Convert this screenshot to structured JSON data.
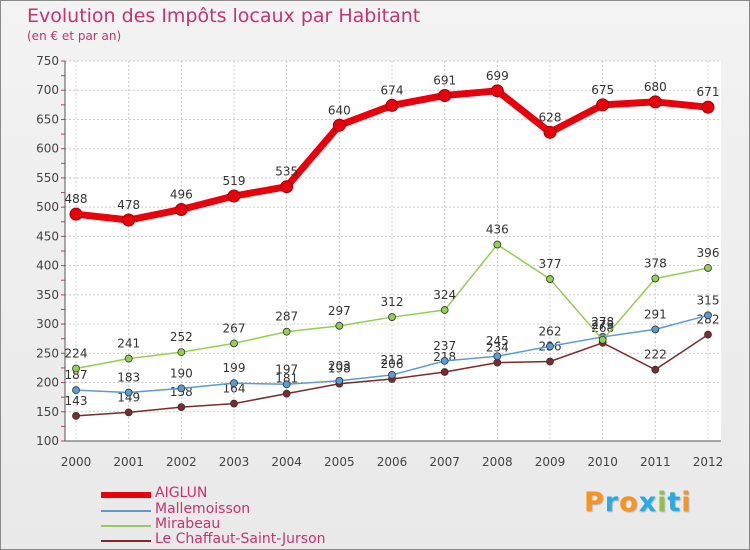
{
  "chart_data": {
    "type": "line",
    "title": "Evolution des Impôts locaux par Habitant",
    "subtitle": "(en € et par an)",
    "xlabel": "",
    "ylabel": "",
    "ylim": [
      100,
      750
    ],
    "yticks": [
      100,
      150,
      200,
      250,
      300,
      350,
      400,
      450,
      500,
      550,
      600,
      650,
      700,
      750
    ],
    "categories": [
      "2000",
      "2001",
      "2002",
      "2003",
      "2004",
      "2005",
      "2006",
      "2007",
      "2008",
      "2009",
      "2010",
      "2011",
      "2012"
    ],
    "grid": true,
    "legend_position": "bottom-left",
    "series": [
      {
        "name": "AIGLUN",
        "color": "#e8000b",
        "values": [
          488,
          478,
          496,
          519,
          535,
          640,
          674,
          691,
          699,
          628,
          675,
          680,
          671
        ]
      },
      {
        "name": "Mallemoisson",
        "color": "#5b9bd5",
        "values": [
          187,
          183,
          190,
          199,
          197,
          203,
          213,
          237,
          245,
          262,
          278,
          291,
          315
        ]
      },
      {
        "name": "Mirabeau",
        "color": "#92d050",
        "values": [
          224,
          241,
          252,
          267,
          287,
          297,
          312,
          324,
          436,
          377,
          273,
          378,
          396
        ]
      },
      {
        "name": "Le Chaffaut-Saint-Jurson",
        "color": "#7f2a2a",
        "values": [
          143,
          149,
          158,
          164,
          181,
          198,
          206,
          218,
          234,
          236,
          268,
          222,
          282
        ]
      }
    ]
  },
  "branding": {
    "letters": [
      {
        "char": "P",
        "color": "#f7931e"
      },
      {
        "char": "r",
        "color": "#29abe2"
      },
      {
        "char": "o",
        "color": "#f7931e"
      },
      {
        "char": "x",
        "color": "#29abe2"
      },
      {
        "char": "i",
        "color": "#8cc63f"
      },
      {
        "char": "t",
        "color": "#29abe2"
      },
      {
        "char": "i",
        "color": "#f7931e"
      }
    ]
  }
}
